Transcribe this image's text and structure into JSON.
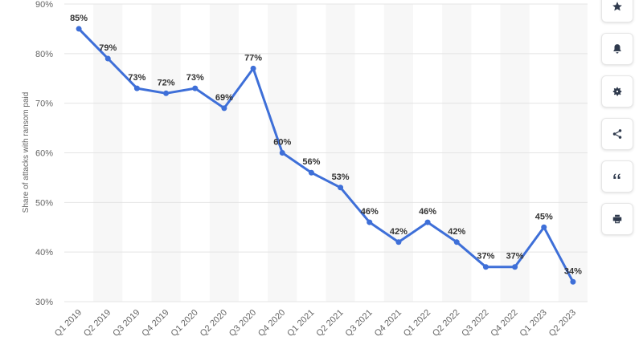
{
  "chart_data": {
    "type": "line",
    "title": "",
    "xlabel": "",
    "ylabel": "Share of attacks with ransom paid",
    "categories": [
      "Q1 2019",
      "Q2 2019",
      "Q3 2019",
      "Q4 2019",
      "Q1 2020",
      "Q2 2020",
      "Q3 2020",
      "Q4 2020",
      "Q1 2021",
      "Q2 2021",
      "Q3 2021",
      "Q4 2021",
      "Q1 2022",
      "Q2 2022",
      "Q3 2022",
      "Q4 2022",
      "Q1 2023",
      "Q2 2023"
    ],
    "values": [
      85,
      79,
      73,
      72,
      73,
      69,
      77,
      60,
      56,
      53,
      46,
      42,
      46,
      42,
      37,
      37,
      45,
      34
    ],
    "value_labels": [
      "85%",
      "79%",
      "73%",
      "72%",
      "73%",
      "69%",
      "77%",
      "60%",
      "56%",
      "53%",
      "46%",
      "42%",
      "46%",
      "42%",
      "37%",
      "37%",
      "45%",
      "34%"
    ],
    "ylim": [
      30,
      90
    ],
    "yticks": [
      30,
      40,
      50,
      60,
      70,
      80,
      90
    ],
    "ytick_labels": [
      "30%",
      "40%",
      "50%",
      "60%",
      "70%",
      "80%",
      "90%"
    ],
    "grid": true,
    "line_color": "#3e6fd8"
  },
  "toolbar": {
    "buttons": [
      "star-icon",
      "bell-icon",
      "gear-icon",
      "share-icon",
      "quote-icon",
      "print-icon"
    ]
  }
}
